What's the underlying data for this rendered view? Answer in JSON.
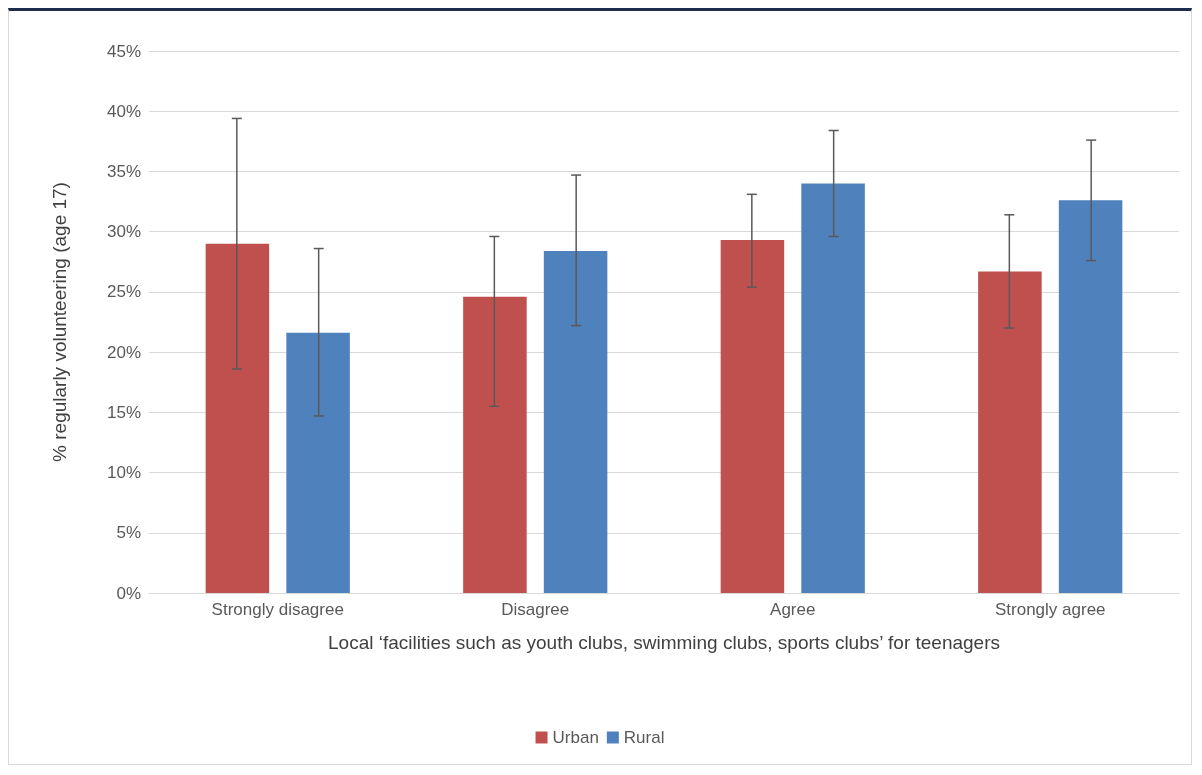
{
  "chart_data": {
    "type": "bar",
    "xlabel": "Local ‘facilities such as youth clubs, swimming clubs, sports clubs’ for teenagers",
    "ylabel": "% regularly volunteering (age 17)",
    "categories": [
      "Strongly disagree",
      "Disagree",
      "Agree",
      "Strongly agree"
    ],
    "series": [
      {
        "name": "Urban",
        "color": "#c0504d",
        "values": [
          29.0,
          24.6,
          29.3,
          26.7
        ],
        "errors": [
          [
            18.6,
            39.4
          ],
          [
            15.5,
            29.6
          ],
          [
            25.4,
            33.1
          ],
          [
            22.0,
            31.4
          ]
        ]
      },
      {
        "name": "Rural",
        "color": "#4f81bd",
        "values": [
          21.6,
          28.4,
          34.0,
          32.6
        ],
        "errors": [
          [
            14.7,
            28.6
          ],
          [
            22.2,
            34.7
          ],
          [
            29.6,
            38.4
          ],
          [
            27.6,
            37.6
          ]
        ]
      }
    ],
    "ylim": [
      0,
      45
    ],
    "yticks": [
      {
        "value": 0,
        "label": "0%"
      },
      {
        "value": 5,
        "label": "5%"
      },
      {
        "value": 10,
        "label": "10%"
      },
      {
        "value": 15,
        "label": "15%"
      },
      {
        "value": 20,
        "label": "20%"
      },
      {
        "value": 25,
        "label": "25%"
      },
      {
        "value": 30,
        "label": "30%"
      },
      {
        "value": 35,
        "label": "35%"
      },
      {
        "value": 40,
        "label": "40%"
      },
      {
        "value": 45,
        "label": "45%"
      }
    ],
    "grid": "y",
    "legend": "bottom"
  }
}
